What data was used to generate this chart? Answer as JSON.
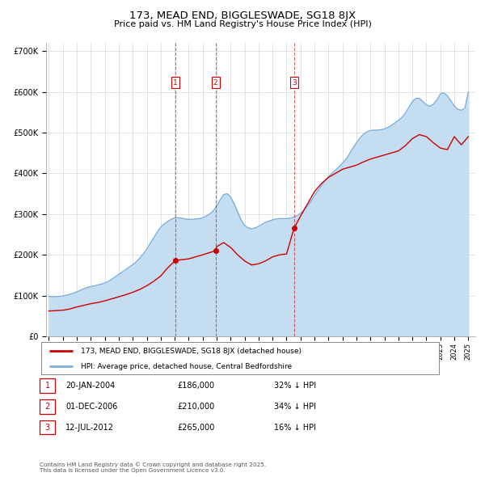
{
  "title": "173, MEAD END, BIGGLESWADE, SG18 8JX",
  "subtitle": "Price paid vs. HM Land Registry's House Price Index (HPI)",
  "legend_line1": "173, MEAD END, BIGGLESWADE, SG18 8JX (detached house)",
  "legend_line2": "HPI: Average price, detached house, Central Bedfordshire",
  "red_color": "#cc0000",
  "blue_color": "#7aaddb",
  "blue_fill_color": "#c5ddf0",
  "background_color": "#ffffff",
  "plot_bg_color": "#ffffff",
  "grid_color": "#cccccc",
  "transactions": [
    {
      "num": 1,
      "date": "20-JAN-2004",
      "price": "£186,000",
      "hpi": "32% ↓ HPI",
      "year": 2004.05
    },
    {
      "num": 2,
      "date": "01-DEC-2006",
      "price": "£210,000",
      "hpi": "34% ↓ HPI",
      "year": 2006.92
    },
    {
      "num": 3,
      "date": "12-JUL-2012",
      "price": "£265,000",
      "hpi": "16% ↓ HPI",
      "year": 2012.53
    }
  ],
  "footer": "Contains HM Land Registry data © Crown copyright and database right 2025.\nThis data is licensed under the Open Government Licence v3.0.",
  "ylim": [
    0,
    720000
  ],
  "xlim_start": 1994.8,
  "xlim_end": 2025.5,
  "yticks": [
    0,
    100000,
    200000,
    300000,
    400000,
    500000,
    600000,
    700000
  ],
  "ytick_labels": [
    "£0",
    "£100K",
    "£200K",
    "£300K",
    "£400K",
    "£500K",
    "£600K",
    "£700K"
  ],
  "hpi_years": [
    1995,
    1995.25,
    1995.5,
    1995.75,
    1996,
    1996.25,
    1996.5,
    1996.75,
    1997,
    1997.25,
    1997.5,
    1997.75,
    1998,
    1998.25,
    1998.5,
    1998.75,
    1999,
    1999.25,
    1999.5,
    1999.75,
    2000,
    2000.25,
    2000.5,
    2000.75,
    2001,
    2001.25,
    2001.5,
    2001.75,
    2002,
    2002.25,
    2002.5,
    2002.75,
    2003,
    2003.25,
    2003.5,
    2003.75,
    2004,
    2004.25,
    2004.5,
    2004.75,
    2005,
    2005.25,
    2005.5,
    2005.75,
    2006,
    2006.25,
    2006.5,
    2006.75,
    2007,
    2007.25,
    2007.5,
    2007.75,
    2008,
    2008.25,
    2008.5,
    2008.75,
    2009,
    2009.25,
    2009.5,
    2009.75,
    2010,
    2010.25,
    2010.5,
    2010.75,
    2011,
    2011.25,
    2011.5,
    2011.75,
    2012,
    2012.25,
    2012.5,
    2012.75,
    2013,
    2013.25,
    2013.5,
    2013.75,
    2014,
    2014.25,
    2014.5,
    2014.75,
    2015,
    2015.25,
    2015.5,
    2015.75,
    2016,
    2016.25,
    2016.5,
    2016.75,
    2017,
    2017.25,
    2017.5,
    2017.75,
    2018,
    2018.25,
    2018.5,
    2018.75,
    2019,
    2019.25,
    2019.5,
    2019.75,
    2020,
    2020.25,
    2020.5,
    2020.75,
    2021,
    2021.25,
    2021.5,
    2021.75,
    2022,
    2022.25,
    2022.5,
    2022.75,
    2023,
    2023.25,
    2023.5,
    2023.75,
    2024,
    2024.25,
    2024.5,
    2024.75,
    2025
  ],
  "hpi_values": [
    98000,
    97000,
    97500,
    98000,
    99000,
    101000,
    103000,
    106000,
    109000,
    113000,
    117000,
    120000,
    122000,
    124000,
    126000,
    128000,
    131000,
    135000,
    140000,
    146000,
    152000,
    158000,
    164000,
    170000,
    176000,
    183000,
    192000,
    202000,
    214000,
    228000,
    242000,
    256000,
    268000,
    276000,
    282000,
    287000,
    291000,
    291000,
    290000,
    288000,
    287000,
    287000,
    288000,
    289000,
    291000,
    295000,
    300000,
    308000,
    320000,
    335000,
    348000,
    350000,
    342000,
    325000,
    305000,
    285000,
    272000,
    266000,
    264000,
    266000,
    270000,
    275000,
    280000,
    283000,
    286000,
    288000,
    289000,
    289000,
    289000,
    290000,
    292000,
    296000,
    302000,
    310000,
    320000,
    332000,
    345000,
    358000,
    370000,
    382000,
    392000,
    400000,
    408000,
    416000,
    425000,
    435000,
    448000,
    462000,
    475000,
    487000,
    496000,
    502000,
    505000,
    506000,
    506000,
    507000,
    509000,
    513000,
    518000,
    524000,
    530000,
    537000,
    548000,
    562000,
    576000,
    584000,
    584000,
    576000,
    568000,
    565000,
    570000,
    580000,
    595000,
    598000,
    590000,
    578000,
    565000,
    557000,
    555000,
    560000,
    600000
  ],
  "red_years": [
    1995,
    1995.5,
    1996,
    1996.5,
    1997,
    1997.5,
    1998,
    1998.5,
    1999,
    1999.5,
    2000,
    2000.5,
    2001,
    2001.5,
    2002,
    2002.5,
    2003,
    2003.5,
    2004.05,
    2004.5,
    2005,
    2005.5,
    2006,
    2006.92,
    2007,
    2007.5,
    2008,
    2008.5,
    2009,
    2009.5,
    2010,
    2010.5,
    2011,
    2011.5,
    2012,
    2012.53,
    2013,
    2013.5,
    2014,
    2014.5,
    2015,
    2015.5,
    2016,
    2016.5,
    2017,
    2017.5,
    2018,
    2018.5,
    2019,
    2019.5,
    2020,
    2020.5,
    2021,
    2021.5,
    2022,
    2022.5,
    2023,
    2023.5,
    2024,
    2024.5,
    2025
  ],
  "red_values": [
    62000,
    63000,
    64000,
    67000,
    72000,
    76000,
    80000,
    83000,
    87000,
    92000,
    97000,
    102000,
    108000,
    115000,
    124000,
    135000,
    148000,
    168000,
    186000,
    188000,
    190000,
    195000,
    200000,
    210000,
    220000,
    230000,
    218000,
    200000,
    185000,
    175000,
    178000,
    185000,
    195000,
    200000,
    202000,
    265000,
    295000,
    325000,
    355000,
    375000,
    390000,
    400000,
    410000,
    415000,
    420000,
    428000,
    435000,
    440000,
    445000,
    450000,
    455000,
    468000,
    485000,
    495000,
    490000,
    475000,
    462000,
    458000,
    490000,
    470000,
    490000
  ]
}
